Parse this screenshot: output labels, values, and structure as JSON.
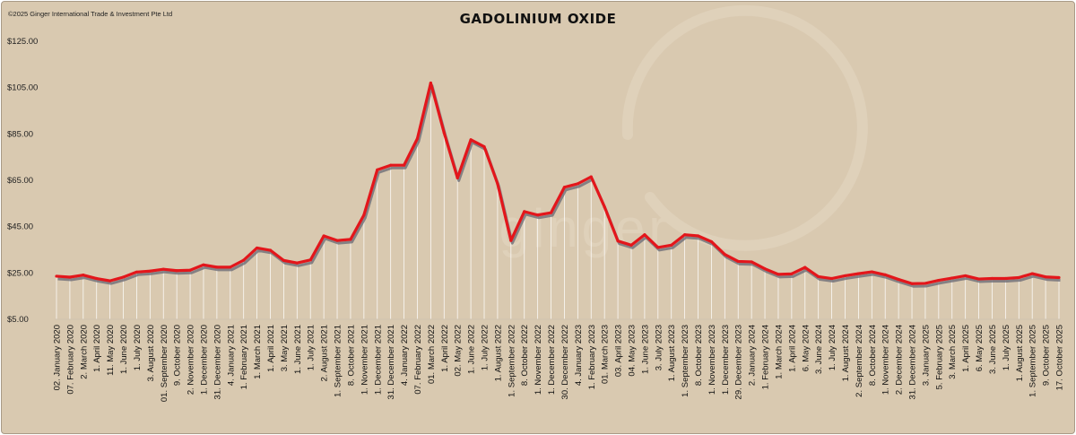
{
  "copyright": "©2025 Ginger International Trade & Investment Pte Ltd",
  "watermark": "ginger",
  "chart_data": {
    "type": "line",
    "title": "GADOLINIUM OXIDE",
    "xlabel": "",
    "ylabel": "",
    "ylim": [
      5,
      125
    ],
    "yticks": [
      "$5.00",
      "$25.00",
      "$45.00",
      "$65.00",
      "$85.00",
      "$105.00",
      "$125.00"
    ],
    "grid": false,
    "legend": "none",
    "colors": {
      "background": "#d9c9b0",
      "line": "#e3161b",
      "shadow": "#6e6e78",
      "droplines": "#ffffff"
    },
    "x_labels": [
      "02. January 2020",
      "07. February 2020",
      "2. March 2020",
      "1. April 2020",
      "11. May 2020",
      "1. June 2020",
      "1. July 2020",
      "3. August 2020",
      "01. September 2020",
      "9. October 2020",
      "2. November 2020",
      "1. December 2020",
      "31. December 2020",
      "4. January 2021",
      "1. February 2021",
      "1. March 2021",
      "1. April 2021",
      "3. May 2021",
      "1. June 2021",
      "1. July 2021",
      "2. August 2021",
      "1. September 2021",
      "8. October 2021",
      "1. November 2021",
      "1. December 2021",
      "31. December 2021",
      "4. January 2022",
      "07. February 2022",
      "01. March 2022",
      "1. April 2022",
      "02. May 2022",
      "1. June 2022",
      "1. July 2022",
      "1. August 2022",
      "1. September 2022",
      "8. October 2022",
      "1. November 2022",
      "1. December 2022",
      "30. December 2022",
      "4. January 2023",
      "1. February 2023",
      "01. March 2023",
      "03. April 2023",
      "04. May 2023",
      "1. June 2023",
      "3. July 2023",
      "1. August 2023",
      "1. September 2023",
      "8. October 2023",
      "1. November 2023",
      "1. December 2023",
      "29. December 2023",
      "2. January 2024",
      "1. February 2024",
      "1. March 2024",
      "1. April 2024",
      "6. May 2024",
      "3. June 2024",
      "1. July 2024",
      "1. August 2024",
      "2. September 2024",
      "8. October 2024",
      "1. November 2024",
      "2. December 2024",
      "31. December 2024",
      "3. January 2025",
      "5. February 2025",
      "3. March 2025",
      "1. April 2025",
      "6. May 2025",
      "3. June 2025",
      "1. July 2025",
      "1. August 2025",
      "1. September 2025",
      "9. October 2025",
      "17. October 2025"
    ],
    "series": [
      {
        "values": [
          23.6,
          23.2,
          24.1,
          22.6,
          21.6,
          23.2,
          25.4,
          25.8,
          26.6,
          26.0,
          26.2,
          28.5,
          27.5,
          27.5,
          30.5,
          35.8,
          34.8,
          30.4,
          29.3,
          30.6,
          41.0,
          39.0,
          39.5,
          50.0,
          69.5,
          71.5,
          71.5,
          83.0,
          107.0,
          85.5,
          66.0,
          82.5,
          79.5,
          63.5,
          39.0,
          51.5,
          50.0,
          51.0,
          62.0,
          63.5,
          66.5,
          53.5,
          38.8,
          37.0,
          41.5,
          36.0,
          37.0,
          41.5,
          41.0,
          38.5,
          33.0,
          30.0,
          29.8,
          26.8,
          24.4,
          24.6,
          27.4,
          23.4,
          22.6,
          23.8,
          24.7,
          25.5,
          24.2,
          22.2,
          20.4,
          20.5,
          21.8,
          22.8,
          23.8,
          22.4,
          22.6,
          22.6,
          23.0,
          24.7,
          23.3,
          23.0
        ]
      }
    ]
  }
}
